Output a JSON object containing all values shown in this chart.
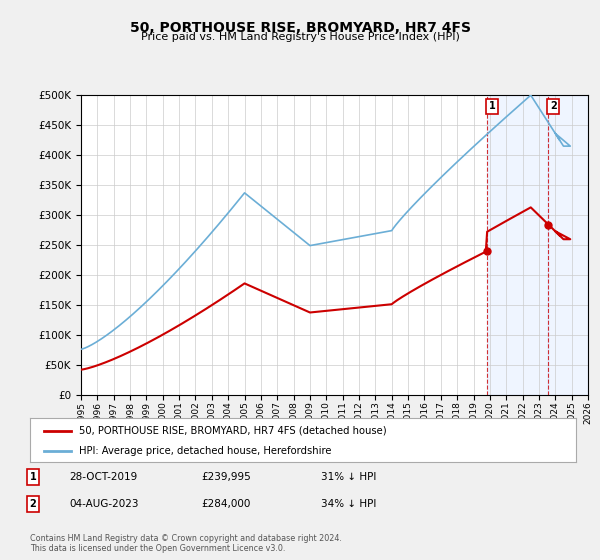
{
  "title": "50, PORTHOUSE RISE, BROMYARD, HR7 4FS",
  "subtitle": "Price paid vs. HM Land Registry's House Price Index (HPI)",
  "legend_line1": "50, PORTHOUSE RISE, BROMYARD, HR7 4FS (detached house)",
  "legend_line2": "HPI: Average price, detached house, Herefordshire",
  "footer": "Contains HM Land Registry data © Crown copyright and database right 2024.\nThis data is licensed under the Open Government Licence v3.0.",
  "transactions": [
    {
      "num": 1,
      "date": "28-OCT-2019",
      "price": "£239,995",
      "pct": "31% ↓ HPI"
    },
    {
      "num": 2,
      "date": "04-AUG-2023",
      "price": "£284,000",
      "pct": "34% ↓ HPI"
    }
  ],
  "sale_points": [
    {
      "year": 2019.833,
      "price": 239995,
      "label": "1"
    },
    {
      "year": 2023.583,
      "price": 284000,
      "label": "2"
    }
  ],
  "sale1_x": 2019.833,
  "sale1_y": 239995,
  "sale2_x": 2023.583,
  "sale2_y": 284000,
  "xlim": [
    1995,
    2026
  ],
  "ylim": [
    0,
    500000
  ],
  "yticks": [
    0,
    50000,
    100000,
    150000,
    200000,
    250000,
    300000,
    350000,
    400000,
    450000,
    500000
  ],
  "xticks": [
    1995,
    1996,
    1997,
    1998,
    1999,
    2000,
    2001,
    2002,
    2003,
    2004,
    2005,
    2006,
    2007,
    2008,
    2009,
    2010,
    2011,
    2012,
    2013,
    2014,
    2015,
    2016,
    2017,
    2018,
    2019,
    2020,
    2021,
    2022,
    2023,
    2024,
    2025,
    2026
  ],
  "hpi_color": "#6baed6",
  "property_color": "#cc0000",
  "background_color": "#f0f0f0",
  "plot_bg": "#ffffff"
}
